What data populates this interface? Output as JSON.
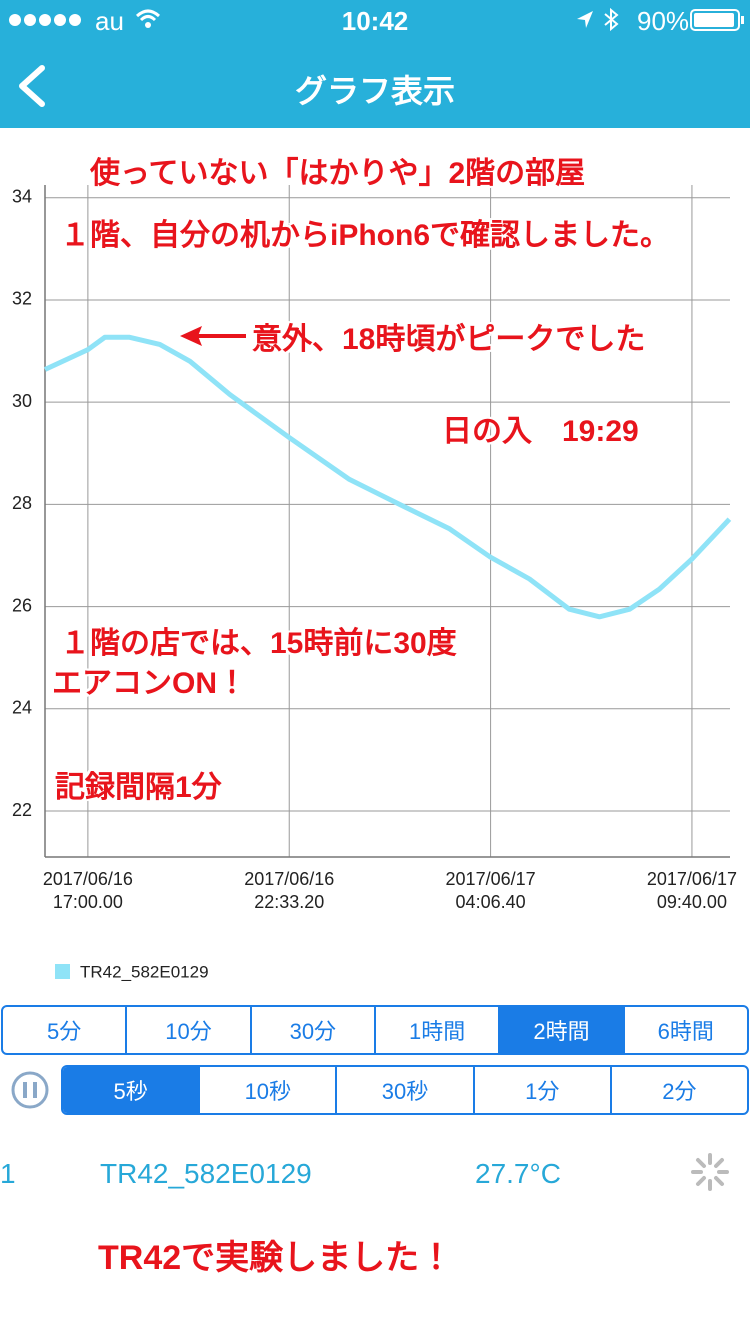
{
  "status_bar": {
    "carrier": "au",
    "time": "10:42",
    "battery": "90%"
  },
  "nav": {
    "title": "グラフ表示"
  },
  "chart_data": {
    "type": "line",
    "x": [
      "2017-06-16T15:49",
      "2017-06-16T17:00",
      "2017-06-16T17:28",
      "2017-06-16T18:09",
      "2017-06-16T18:59",
      "2017-06-16T19:49",
      "2017-06-16T20:55",
      "2017-06-16T22:33",
      "2017-06-17T00:13",
      "2017-06-17T01:36",
      "2017-06-17T02:59",
      "2017-06-17T04:06",
      "2017-06-17T05:11",
      "2017-06-17T06:17",
      "2017-06-17T07:07",
      "2017-06-17T07:57",
      "2017-06-17T08:46",
      "2017-06-17T09:40",
      "2017-06-17T10:42"
    ],
    "series": [
      {
        "name": "TR42_582E0129",
        "color": "#8fe3f7",
        "values": [
          30.64,
          31.03,
          31.27,
          31.27,
          31.13,
          30.8,
          30.15,
          29.31,
          28.49,
          28.0,
          27.52,
          26.97,
          26.54,
          25.95,
          25.8,
          25.95,
          26.34,
          26.93,
          27.71
        ]
      }
    ],
    "xlim": [
      "2017-06-16T15:49",
      "2017-06-17T10:43"
    ],
    "xticks": [
      {
        "value": "2017-06-16T17:00:00",
        "label": [
          "2017/06/16",
          "17:00.00"
        ]
      },
      {
        "value": "2017-06-16T22:33:20",
        "label": [
          "2017/06/16",
          "22:33.20"
        ]
      },
      {
        "value": "2017-06-17T04:06:40",
        "label": [
          "2017/06/17",
          "04:06.40"
        ]
      },
      {
        "value": "2017-06-17T09:40:00",
        "label": [
          "2017/06/17",
          "09:40.00"
        ]
      }
    ],
    "ylim": [
      21.1,
      34.25
    ],
    "yticks": [
      22,
      24,
      26,
      28,
      30,
      32,
      34
    ],
    "grid": true,
    "annotations": [
      "使っていない「はかりや」2階の部屋",
      "１階、自分の机からiPhon6で確認しました。",
      "意外、18時頃がピークでした",
      "日の入　19:29",
      "１階の店では、15時前に30度",
      "エアコンON！",
      "記録間隔1分"
    ]
  },
  "range_buttons": {
    "labels": [
      "5分",
      "10分",
      "30分",
      "1時間",
      "2時間",
      "6時間"
    ],
    "selected": 4
  },
  "interval_buttons": {
    "labels": [
      "5秒",
      "10秒",
      "30秒",
      "1分",
      "2分"
    ],
    "selected": 0
  },
  "list_row": {
    "index": "1",
    "device": "TR42_582E0129",
    "value": "27.7°C"
  },
  "footer_note": "TR42で実験しました！"
}
